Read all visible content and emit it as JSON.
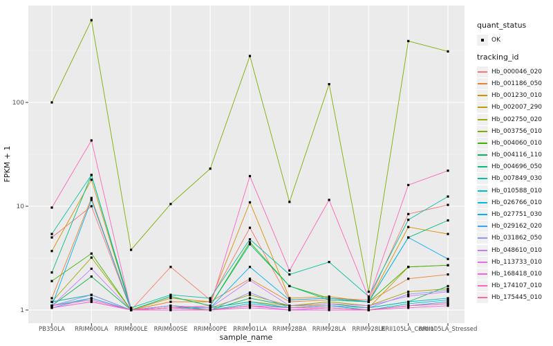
{
  "figure": {
    "y_axis_title": "FPKM + 1",
    "x_axis_title": "sample_name"
  },
  "legend": {
    "quant_status_title": "quant_status",
    "quant_status_items": [
      {
        "label": "OK",
        "shape": "black-point"
      }
    ],
    "tracking_id_title": "tracking_id"
  },
  "chart_data": {
    "type": "line",
    "title": "",
    "xlabel": "sample_name",
    "ylabel": "FPKM + 1",
    "y_scale": "log10",
    "ylim": [
      1,
      700
    ],
    "y_ticks": [
      1,
      10,
      100
    ],
    "y_minor_ticks": [
      3.162,
      31.62,
      316.2
    ],
    "grid": "on",
    "legend_position": "right",
    "panel_background": "#EBEBEB",
    "gridline_color": "#FFFFFF",
    "point_color": "#000000",
    "point_shape": "square",
    "quant_status": "OK",
    "categories": [
      "PB350LA",
      "RRIM600LA",
      "RRIM600LE",
      "RRIM600SE",
      "RRIM600PE",
      "RRIM901LA",
      "RRIM928BA",
      "RRIM928LA",
      "RRIM928LE",
      "RRII105LA_Control",
      "RRII105LA_Stressed"
    ],
    "series": [
      {
        "name": "Hb_000046_020",
        "color": "#F8766D",
        "values": [
          5.0,
          10,
          1.0,
          2.6,
          1.25,
          6.2,
          1.25,
          1.3,
          1.25,
          8.4,
          10.3
        ]
      },
      {
        "name": "Hb_001186_050",
        "color": "#EA8331",
        "values": [
          1.3,
          12,
          1.0,
          1.2,
          1.2,
          2.0,
          1.2,
          1.25,
          1.2,
          2.0,
          2.2
        ]
      },
      {
        "name": "Hb_001230_010",
        "color": "#D89000",
        "values": [
          3.7,
          18,
          1.0,
          1.3,
          1.2,
          10.9,
          1.3,
          1.35,
          1.2,
          6.3,
          5.4
        ]
      },
      {
        "name": "Hb_002007_290",
        "color": "#C09B00",
        "values": [
          1.2,
          1.4,
          1.0,
          1.05,
          1.05,
          1.2,
          1.1,
          1.1,
          1.05,
          2.6,
          2.7
        ]
      },
      {
        "name": "Hb_002750_020",
        "color": "#A3A500",
        "values": [
          1.2,
          3.2,
          1.0,
          1.1,
          1.05,
          1.4,
          1.1,
          1.2,
          1.1,
          1.5,
          1.6
        ]
      },
      {
        "name": "Hb_003756_010",
        "color": "#7CAE00",
        "values": [
          100,
          620,
          3.8,
          10.5,
          23,
          280,
          11,
          150,
          1.5,
          390,
          310
        ]
      },
      {
        "name": "Hb_004060_010",
        "color": "#39B600",
        "values": [
          1.9,
          3.5,
          1.0,
          1.35,
          1.1,
          4.5,
          1.7,
          1.3,
          1.2,
          2.6,
          2.7
        ]
      },
      {
        "name": "Hb_004116_110",
        "color": "#00BB4E",
        "values": [
          1.1,
          2.1,
          1.0,
          1.1,
          1.0,
          1.3,
          1.1,
          1.15,
          1.05,
          1.2,
          1.7
        ]
      },
      {
        "name": "Hb_004696_050",
        "color": "#00BF7D",
        "values": [
          2.3,
          20,
          1.0,
          1.35,
          1.1,
          4.3,
          1.7,
          1.25,
          1.2,
          5.0,
          7.3
        ]
      },
      {
        "name": "Hb_007849_030",
        "color": "#00C1A3",
        "values": [
          5.4,
          20,
          1.05,
          1.4,
          1.3,
          4.8,
          2.2,
          2.9,
          1.35,
          7.4,
          12.4
        ]
      },
      {
        "name": "Hb_010588_010",
        "color": "#00BFC4",
        "values": [
          1.2,
          1.4,
          1.0,
          1.1,
          1.05,
          1.2,
          1.05,
          1.1,
          1.05,
          1.2,
          1.3
        ]
      },
      {
        "name": "Hb_026766_010",
        "color": "#00BAE0",
        "values": [
          1.1,
          1.3,
          1.0,
          1.05,
          1.0,
          1.15,
          1.05,
          1.1,
          1.0,
          1.15,
          1.25
        ]
      },
      {
        "name": "Hb_027751_030",
        "color": "#00B0F6",
        "values": [
          1.1,
          11.5,
          1.0,
          1.05,
          1.05,
          2.6,
          1.25,
          1.3,
          1.2,
          5.0,
          3.1
        ]
      },
      {
        "name": "Hb_029162_020",
        "color": "#35A2FF",
        "values": [
          1.05,
          1.3,
          1.0,
          1.0,
          1.0,
          1.1,
          1.0,
          1.05,
          1.0,
          1.1,
          1.2
        ]
      },
      {
        "name": "Hb_031862_050",
        "color": "#9590FF",
        "values": [
          1.1,
          1.4,
          1.0,
          1.05,
          1.0,
          1.47,
          1.05,
          1.1,
          1.05,
          1.42,
          1.55
        ]
      },
      {
        "name": "Hb_048610_010",
        "color": "#C77CFF",
        "values": [
          1.1,
          2.5,
          1.0,
          1.1,
          1.05,
          1.93,
          1.1,
          1.15,
          1.1,
          1.36,
          1.5
        ]
      },
      {
        "name": "Hb_113733_010",
        "color": "#E76BF3",
        "values": [
          1.05,
          1.2,
          1.0,
          1.0,
          1.0,
          1.1,
          1.0,
          1.05,
          1.0,
          1.1,
          1.15
        ]
      },
      {
        "name": "Hb_168418_010",
        "color": "#FA62DB",
        "values": [
          1.05,
          1.2,
          1.0,
          1.0,
          1.0,
          1.05,
          1.0,
          1.0,
          1.0,
          1.05,
          1.1
        ]
      },
      {
        "name": "Hb_174107_010",
        "color": "#FF62BC",
        "values": [
          9.7,
          43,
          1.0,
          1.05,
          1.1,
          19.5,
          2.4,
          11.5,
          1.3,
          16,
          22
        ]
      },
      {
        "name": "Hb_175445_010",
        "color": "#FF6A98",
        "values": [
          1.1,
          1.25,
          1.0,
          1.05,
          1.0,
          1.1,
          1.05,
          1.05,
          1.0,
          1.1,
          1.15
        ]
      }
    ]
  }
}
